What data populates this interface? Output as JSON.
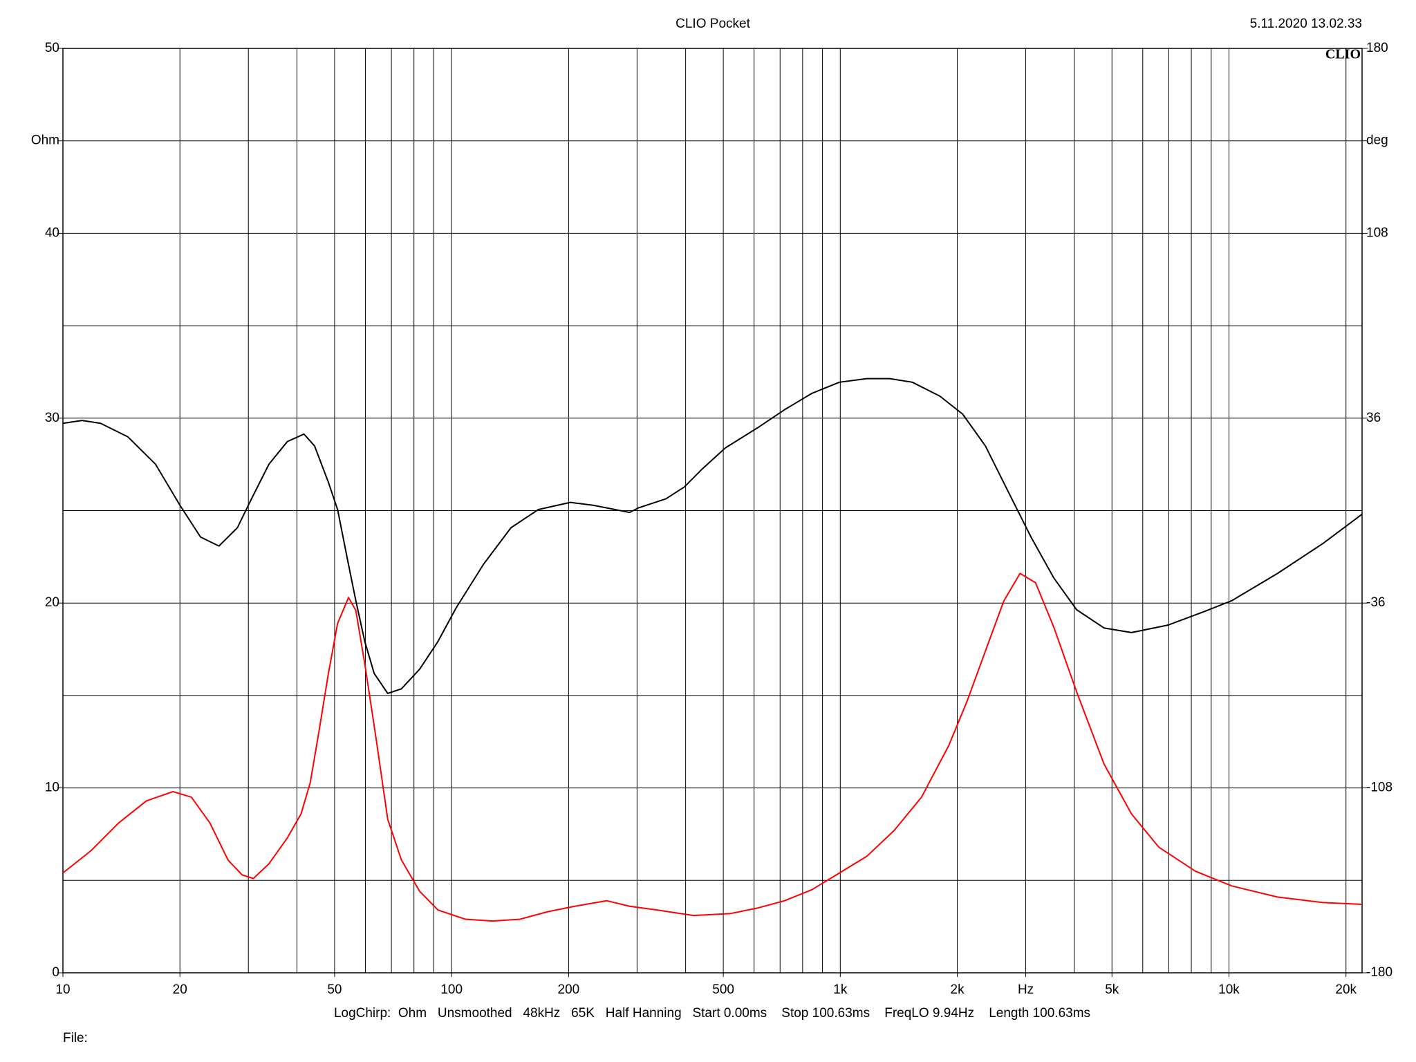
{
  "chart_data": {
    "type": "line",
    "title": "CLIO Pocket",
    "timestamp": "5.11.2020 13.02.33",
    "logo": "CLIO",
    "footer": "LogChirp:  Ohm   Unsmoothed   48kHz   65K   Half Hanning   Start 0.00ms    Stop 100.63ms    FreqLO 9.94Hz    Length 100.63ms",
    "file_label": "File:",
    "xscale": "log",
    "grid": true,
    "xlim": [
      10,
      22000
    ],
    "xticks": [
      10,
      20,
      50,
      100,
      200,
      500,
      {
        "value": 1000,
        "label": "1k"
      },
      {
        "value": 2000,
        "label": "2k"
      },
      {
        "value": 3000,
        "label": "Hz"
      },
      {
        "value": 5000,
        "label": "5k"
      },
      {
        "value": 10000,
        "label": "10k"
      },
      {
        "value": 20000,
        "label": "20k"
      }
    ],
    "xgrid": [
      20,
      30,
      40,
      50,
      60,
      70,
      80,
      90,
      100,
      200,
      300,
      400,
      500,
      600,
      700,
      800,
      900,
      1000,
      2000,
      3000,
      4000,
      5000,
      6000,
      7000,
      8000,
      9000,
      10000,
      20000
    ],
    "ylim": [
      0,
      50
    ],
    "yticks": [
      0,
      10,
      20,
      30,
      40,
      50,
      {
        "value": 45,
        "label": "Ohm"
      }
    ],
    "ygrid": [
      5,
      10,
      15,
      20,
      25,
      30,
      35,
      40,
      45
    ],
    "y2lim": [
      -180,
      180
    ],
    "y2ticks": [
      -180,
      -108,
      -36,
      36,
      108,
      180,
      {
        "value": 144,
        "label": "deg"
      }
    ],
    "series": [
      {
        "color": "#000000",
        "axis": "y2",
        "x": [
          10,
          11.2,
          12.5,
          14.7,
          17.3,
          20,
          22.6,
          25.2,
          28.1,
          30.4,
          33.9,
          37.8,
          41.7,
          44.4,
          48.2,
          50.9,
          53.7,
          56.7,
          59.8,
          63.2,
          68.5,
          74.3,
          82.8,
          92.2,
          102.7,
          120.8,
          142.1,
          167.1,
          202,
          231,
          287,
          303,
          356,
          397,
          442,
          506,
          612,
          719,
          846,
          995,
          1170,
          1340,
          1532,
          1803,
          2064,
          2362,
          2704,
          3095,
          3542,
          4055,
          4769,
          5610,
          6962,
          8642,
          10160,
          13320,
          17450,
          22000
        ],
        "values": [
          34.0,
          35.1,
          34.0,
          28.7,
          18.1,
          2.1,
          -10.3,
          -13.8,
          -6.7,
          3.9,
          18.1,
          26.9,
          29.8,
          25.2,
          11.0,
          0.4,
          -17.4,
          -35.1,
          -51.0,
          -63.4,
          -71.2,
          -69.4,
          -61.7,
          -51.0,
          -37.9,
          -20.9,
          -6.7,
          0.4,
          3.2,
          2.1,
          -0.7,
          1.1,
          4.6,
          9.2,
          16.3,
          24.4,
          32.2,
          39.3,
          45.7,
          50.0,
          51.4,
          51.4,
          50.0,
          44.6,
          37.6,
          25.2,
          7.4,
          -10.3,
          -26.2,
          -38.6,
          -45.7,
          -47.5,
          -44.6,
          -39.3,
          -35.1,
          -24.5,
          -12.8,
          -1.4
        ]
      },
      {
        "color": "#ff0000",
        "axis": "y",
        "x": [
          10,
          11.8,
          13.9,
          16.4,
          19.2,
          21.4,
          23.9,
          26.6,
          28.9,
          30.9,
          33.9,
          37.8,
          41.0,
          43.3,
          45.7,
          48.2,
          50.9,
          54.3,
          56.7,
          59.8,
          63.9,
          68.5,
          74.3,
          82.8,
          92.2,
          108.4,
          127.5,
          150.1,
          176.4,
          207.5,
          250.6,
          287,
          337.5,
          419,
          520,
          612,
          719,
          846,
          995,
          1170,
          1376,
          1618,
          1902,
          2120,
          2362,
          2633,
          2900,
          3179,
          3542,
          4055,
          4769,
          5610,
          6596,
          8188,
          10160,
          13320,
          17450,
          22000
        ],
        "values": [
          5.4,
          6.6,
          8.1,
          9.3,
          9.8,
          9.5,
          8.1,
          6.1,
          5.3,
          5.1,
          5.9,
          7.3,
          8.6,
          10.3,
          13.2,
          16.2,
          18.9,
          20.3,
          19.6,
          16.7,
          12.7,
          8.3,
          6.1,
          4.4,
          3.4,
          2.9,
          2.8,
          2.9,
          3.3,
          3.6,
          3.9,
          3.6,
          3.4,
          3.1,
          3.2,
          3.5,
          3.9,
          4.5,
          5.4,
          6.3,
          7.7,
          9.5,
          12.3,
          14.7,
          17.4,
          20.1,
          21.6,
          21.1,
          18.7,
          15.2,
          11.3,
          8.6,
          6.8,
          5.5,
          4.7,
          4.1,
          3.8,
          3.7
        ]
      }
    ]
  }
}
